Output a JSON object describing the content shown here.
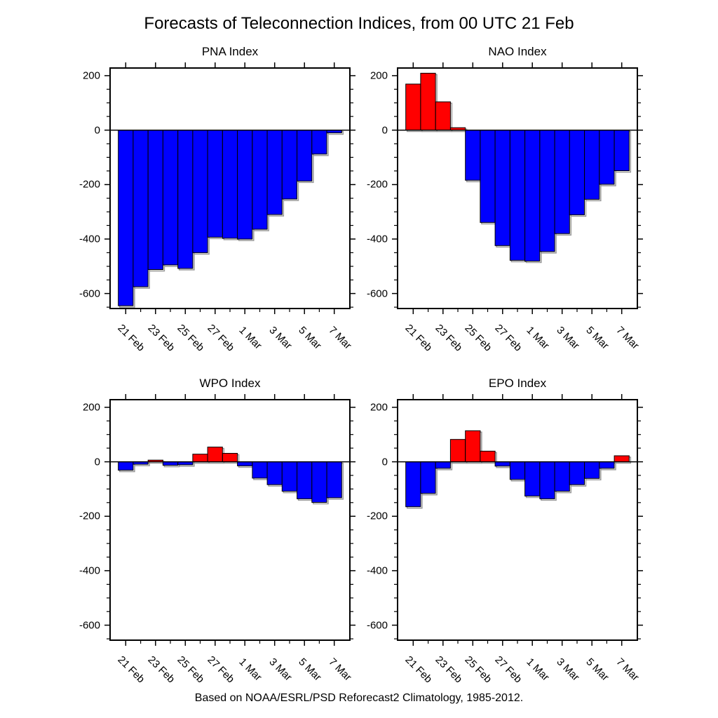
{
  "title": "Forecasts of Teleconnection Indices, from 00 UTC 21 Feb",
  "caption": "Based on NOAA/ESRL/PSD Reforecast2 Climatology, 1985-2012.",
  "colors": {
    "positive": "#ff0000",
    "negative": "#0000ff",
    "bar_shadow": "#999999",
    "axis": "#000000",
    "background": "#ffffff"
  },
  "axis": {
    "ylim": [
      -655,
      228
    ],
    "y_major": [
      200,
      0,
      -200,
      -400,
      -600
    ],
    "y_tick_labels": [
      "200",
      "0",
      "-200",
      "-400",
      "-600"
    ],
    "y_minor_step": 50,
    "x_tick_labels": [
      "21 Feb",
      "23 Feb",
      "25 Feb",
      "27 Feb",
      "1 Mar",
      "3 Mar",
      "5 Mar",
      "7 Mar"
    ],
    "grid": false
  },
  "chart_data": [
    {
      "type": "bar",
      "title": "PNA Index",
      "xlabel": "",
      "ylabel": "",
      "ylim": [
        -655,
        228
      ],
      "categories": [
        "21 Feb",
        "22 Feb",
        "23 Feb",
        "24 Feb",
        "25 Feb",
        "26 Feb",
        "27 Feb",
        "28 Feb",
        "1 Mar",
        "2 Mar",
        "3 Mar",
        "4 Mar",
        "5 Mar",
        "6 Mar",
        "7 Mar"
      ],
      "values": [
        -645,
        -575,
        -512,
        -495,
        -508,
        -450,
        -393,
        -397,
        -400,
        -364,
        -310,
        -253,
        -187,
        -88,
        -10
      ]
    },
    {
      "type": "bar",
      "title": "NAO Index",
      "xlabel": "",
      "ylabel": "",
      "ylim": [
        -655,
        228
      ],
      "categories": [
        "21 Feb",
        "22 Feb",
        "23 Feb",
        "24 Feb",
        "25 Feb",
        "26 Feb",
        "27 Feb",
        "28 Feb",
        "1 Mar",
        "2 Mar",
        "3 Mar",
        "4 Mar",
        "5 Mar",
        "6 Mar",
        "7 Mar"
      ],
      "values": [
        169,
        209,
        104,
        9,
        -184,
        -339,
        -424,
        -478,
        -481,
        -446,
        -380,
        -311,
        -254,
        -199,
        -149
      ]
    },
    {
      "type": "bar",
      "title": "WPO Index",
      "xlabel": "",
      "ylabel": "",
      "ylim": [
        -655,
        228
      ],
      "categories": [
        "21 Feb",
        "22 Feb",
        "23 Feb",
        "24 Feb",
        "25 Feb",
        "26 Feb",
        "27 Feb",
        "28 Feb",
        "1 Mar",
        "2 Mar",
        "3 Mar",
        "4 Mar",
        "5 Mar",
        "6 Mar",
        "7 Mar"
      ],
      "values": [
        -31,
        -9,
        6,
        -13,
        -11,
        28,
        54,
        31,
        -15,
        -60,
        -84,
        -108,
        -136,
        -149,
        -132
      ]
    },
    {
      "type": "bar",
      "title": "EPO Index",
      "xlabel": "",
      "ylabel": "",
      "ylim": [
        -655,
        228
      ],
      "categories": [
        "21 Feb",
        "22 Feb",
        "23 Feb",
        "24 Feb",
        "25 Feb",
        "26 Feb",
        "27 Feb",
        "28 Feb",
        "1 Mar",
        "2 Mar",
        "3 Mar",
        "4 Mar",
        "5 Mar",
        "6 Mar",
        "7 Mar"
      ],
      "values": [
        -165,
        -116,
        -24,
        82,
        114,
        39,
        -16,
        -65,
        -126,
        -136,
        -108,
        -84,
        -61,
        -24,
        22
      ]
    }
  ]
}
